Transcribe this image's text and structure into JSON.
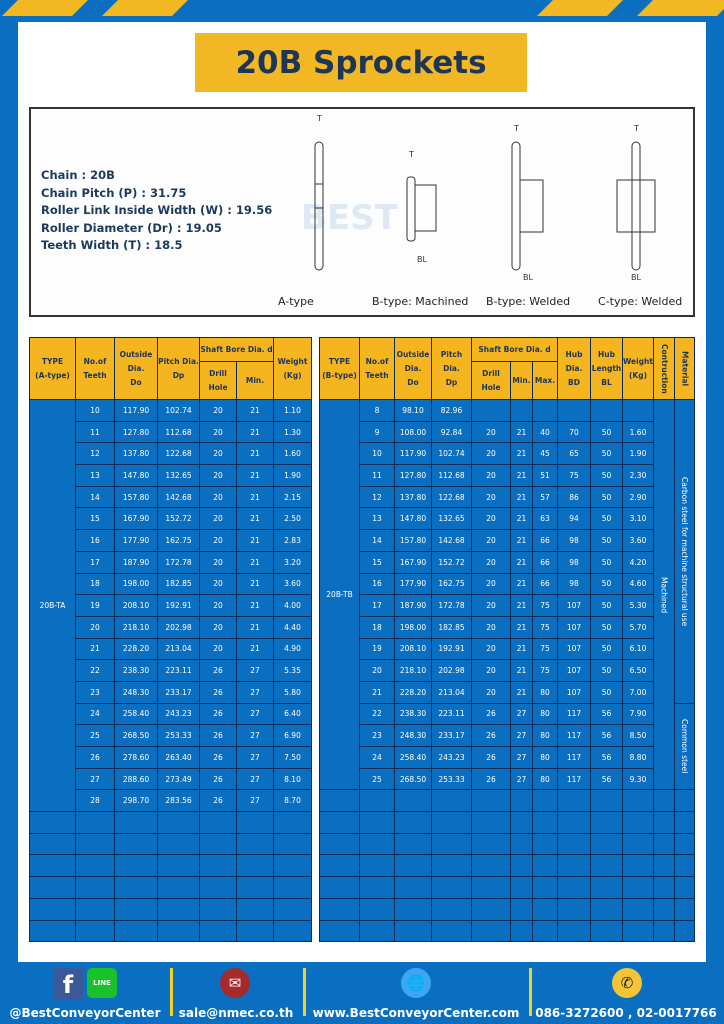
{
  "title": "20B Sprockets",
  "specs": [
    {
      "label": "Chain",
      "value": "20B"
    },
    {
      "label": "Chain Pitch (P)",
      "value": "31.75"
    },
    {
      "label": "Roller Link Inside Width (W)",
      "value": "19.56"
    },
    {
      "label": "Roller Diameter (Dr)",
      "value": "19.05"
    },
    {
      "label": "Teeth Width (T)",
      "value": "18.5"
    }
  ],
  "diagram_labels": [
    "A-type",
    "B-type: Machined",
    "B-type: Welded",
    "C-type: Welded"
  ],
  "watermark": "BEST CONVEYOR CENTER",
  "table_a": {
    "headers": {
      "type": "TYPE",
      "type_sub": "(A-type)",
      "teeth": "No.of",
      "teeth_sub": "Teeth",
      "do": "Outside",
      "do_sub": "Dia.",
      "do_sub2": "Do",
      "dp": "Pitch Dia.",
      "dp_sub": "Dp",
      "bore": "Shaft Bore Dia. d",
      "drill": "Drill Hole",
      "min": "Min.",
      "weight": "Weight",
      "weight_sub": "(Kg)"
    },
    "type_value": "20B-TA",
    "rows": [
      [
        "10",
        "117.90",
        "102.74",
        "20",
        "21",
        "1.10"
      ],
      [
        "11",
        "127.80",
        "112.68",
        "20",
        "21",
        "1.30"
      ],
      [
        "12",
        "137.80",
        "122.68",
        "20",
        "21",
        "1.60"
      ],
      [
        "13",
        "147.80",
        "132.65",
        "20",
        "21",
        "1.90"
      ],
      [
        "14",
        "157.80",
        "142.68",
        "20",
        "21",
        "2.15"
      ],
      [
        "15",
        "167.90",
        "152.72",
        "20",
        "21",
        "2.50"
      ],
      [
        "16",
        "177.90",
        "162.75",
        "20",
        "21",
        "2.83"
      ],
      [
        "17",
        "187.90",
        "172.78",
        "20",
        "21",
        "3.20"
      ],
      [
        "18",
        "198.00",
        "182.85",
        "20",
        "21",
        "3.60"
      ],
      [
        "19",
        "208.10",
        "192.91",
        "20",
        "21",
        "4.00"
      ],
      [
        "20",
        "218.10",
        "202.98",
        "20",
        "21",
        "4.40"
      ],
      [
        "21",
        "228.20",
        "213.04",
        "20",
        "21",
        "4.90"
      ],
      [
        "22",
        "238.30",
        "223.11",
        "26",
        "27",
        "5.35"
      ],
      [
        "23",
        "248.30",
        "233.17",
        "26",
        "27",
        "5.80"
      ],
      [
        "24",
        "258.40",
        "243.23",
        "26",
        "27",
        "6.40"
      ],
      [
        "25",
        "268.50",
        "253.33",
        "26",
        "27",
        "6.90"
      ],
      [
        "26",
        "278.60",
        "263.40",
        "26",
        "27",
        "7.50"
      ],
      [
        "27",
        "288.60",
        "273.49",
        "26",
        "27",
        "8.10"
      ],
      [
        "28",
        "298.70",
        "283.56",
        "26",
        "27",
        "8.70"
      ]
    ]
  },
  "table_b": {
    "headers": {
      "type": "TYPE",
      "type_sub": "(B-type)",
      "teeth": "No.of",
      "teeth_sub": "Teeth",
      "do": "Outside",
      "do_sub": "Dia.",
      "do_sub2": "Do",
      "dp": "Pitch Dia.",
      "dp_sub": "Dp",
      "bore": "Shaft Bore Dia. d",
      "drill": "Drill Hole",
      "min": "Min.",
      "max": "Max.",
      "hub": "Hub Dia.",
      "hub_sub": "BD",
      "hubl": "Hub",
      "hubl_sub": "Length",
      "hubl_sub2": "BL",
      "weight": "Weight",
      "weight_sub": "(Kg)",
      "construction": "Contruction",
      "material": "Material"
    },
    "type_value": "20B-TB",
    "construction_value": "Machined",
    "material_values": [
      "Carbon steel for machine structural use",
      "Common steel"
    ],
    "rows": [
      [
        "8",
        "98.10",
        "82.96",
        "",
        "",
        "",
        "",
        "",
        ""
      ],
      [
        "9",
        "108.00",
        "92.84",
        "20",
        "21",
        "40",
        "70",
        "50",
        "1.60"
      ],
      [
        "10",
        "117.90",
        "102.74",
        "20",
        "21",
        "45",
        "65",
        "50",
        "1.90"
      ],
      [
        "11",
        "127.80",
        "112.68",
        "20",
        "21",
        "51",
        "75",
        "50",
        "2.30"
      ],
      [
        "12",
        "137.80",
        "122.68",
        "20",
        "21",
        "57",
        "86",
        "50",
        "2.90"
      ],
      [
        "13",
        "147.80",
        "132.65",
        "20",
        "21",
        "63",
        "94",
        "50",
        "3.10"
      ],
      [
        "14",
        "157.80",
        "142.68",
        "20",
        "21",
        "66",
        "98",
        "50",
        "3.60"
      ],
      [
        "15",
        "167.90",
        "152.72",
        "20",
        "21",
        "66",
        "98",
        "50",
        "4.20"
      ],
      [
        "16",
        "177.90",
        "162.75",
        "20",
        "21",
        "66",
        "98",
        "50",
        "4.60"
      ],
      [
        "17",
        "187.90",
        "172.78",
        "20",
        "21",
        "75",
        "107",
        "50",
        "5.30"
      ],
      [
        "18",
        "198.00",
        "182.85",
        "20",
        "21",
        "75",
        "107",
        "50",
        "5.70"
      ],
      [
        "19",
        "208.10",
        "192.91",
        "20",
        "21",
        "75",
        "107",
        "50",
        "6.10"
      ],
      [
        "20",
        "218.10",
        "202.98",
        "20",
        "21",
        "75",
        "107",
        "50",
        "6.50"
      ],
      [
        "21",
        "228.20",
        "213.04",
        "20",
        "21",
        "80",
        "107",
        "50",
        "7.00"
      ],
      [
        "22",
        "238.30",
        "223.11",
        "26",
        "27",
        "80",
        "117",
        "56",
        "7.90"
      ],
      [
        "23",
        "248.30",
        "233.17",
        "26",
        "27",
        "80",
        "117",
        "56",
        "8.50"
      ],
      [
        "24",
        "258.40",
        "243.23",
        "26",
        "27",
        "80",
        "117",
        "56",
        "8.80"
      ],
      [
        "25",
        "268.50",
        "253.33",
        "26",
        "27",
        "80",
        "117",
        "56",
        "9.30"
      ]
    ]
  },
  "footer": {
    "social": "@BestConveyorCenter",
    "email": "sale@nmec.co.th",
    "website": "www.BestConveyorCenter.com",
    "phone": "086-3272600 , 02-0017766",
    "line_label": "LINE"
  },
  "colors": {
    "brand_blue": "#0b6fc1",
    "accent_yellow": "#f2b824",
    "title_text": "#1d3557"
  }
}
